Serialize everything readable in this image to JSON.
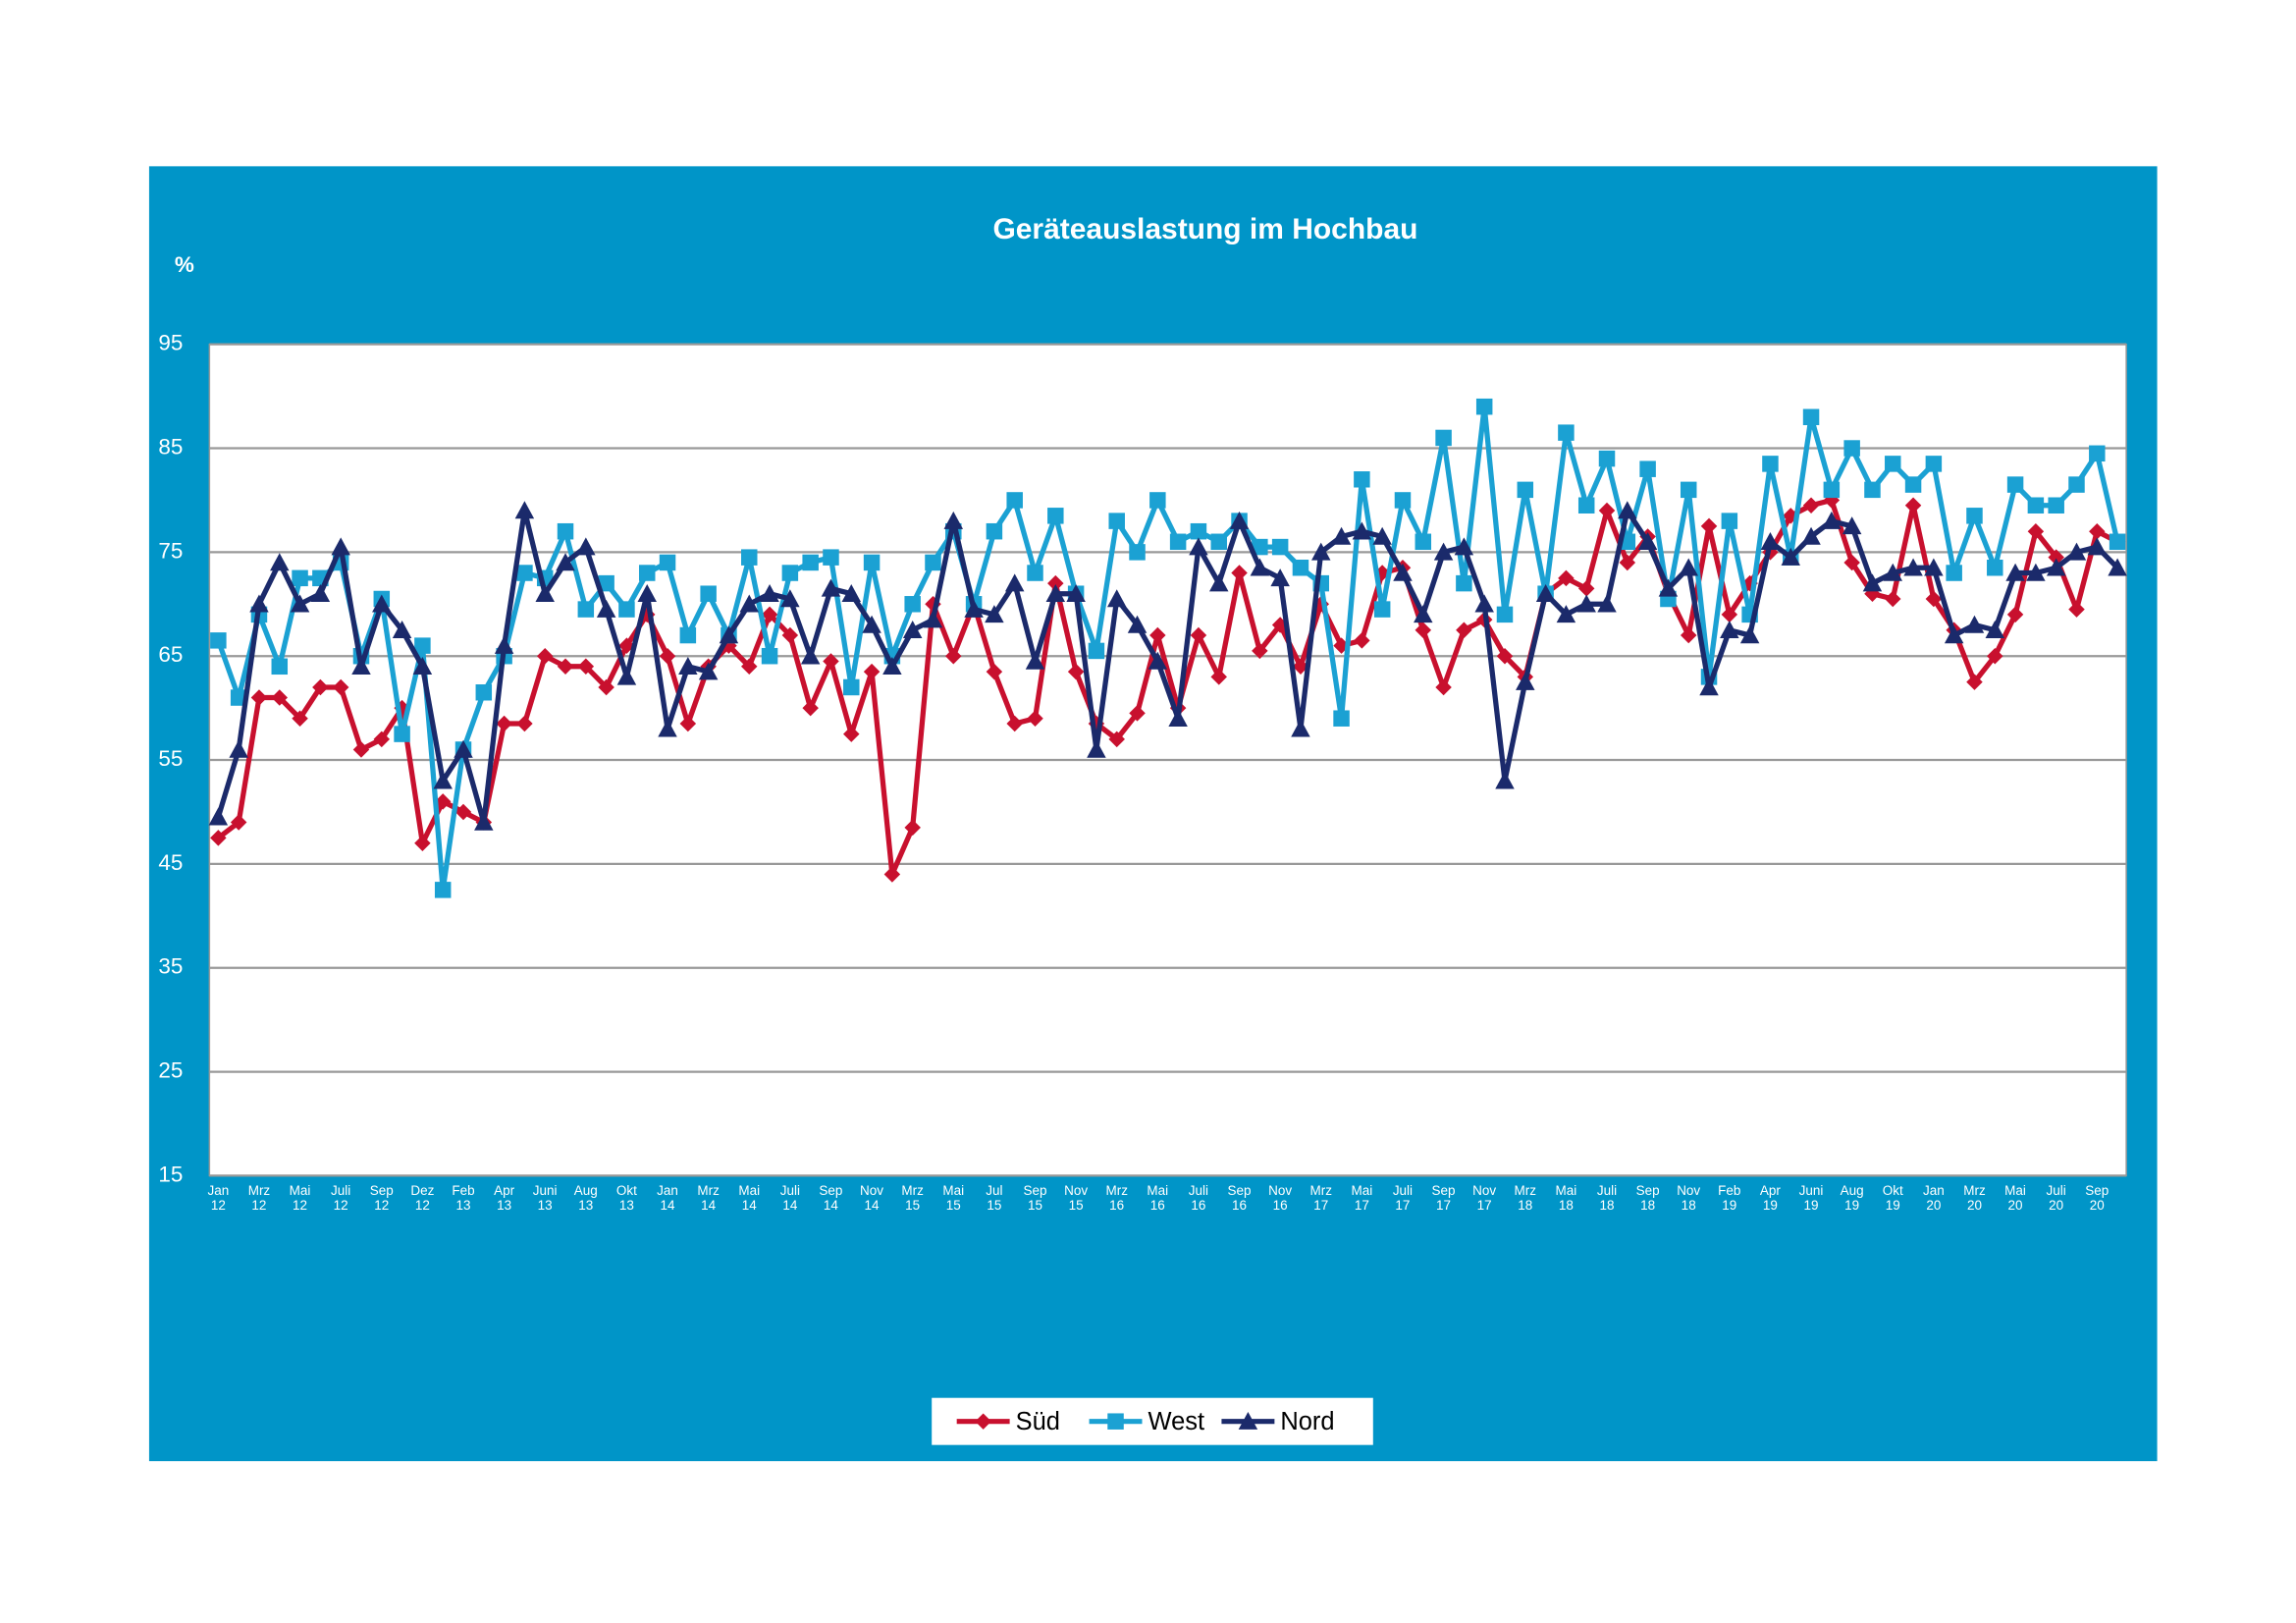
{
  "chart_data": {
    "type": "line",
    "title": "Geräteauslastung im Hochbau",
    "y_label": "%",
    "ylim": [
      15,
      95
    ],
    "yticks": [
      15,
      25,
      35,
      45,
      55,
      65,
      75,
      85,
      95
    ],
    "grid": true,
    "legend": "bottom",
    "categories": [
      "Jan 12",
      null,
      "Mrz 12",
      null,
      "Mai 12",
      null,
      "Juli 12",
      null,
      "Sep 12",
      null,
      "Dez 12",
      null,
      "Feb 13",
      null,
      "Apr 13",
      null,
      "Juni 13",
      null,
      "Aug 13",
      null,
      "Okt 13",
      null,
      "Jan 14",
      null,
      "Mrz 14",
      null,
      "Mai 14",
      null,
      "Juli 14",
      null,
      "Sep 14",
      null,
      "Nov 14",
      null,
      "Mrz 15",
      null,
      "Mai 15",
      null,
      "Jul 15",
      null,
      "Sep 15",
      null,
      "Nov 15",
      null,
      "Mrz 16",
      null,
      "Mai 16",
      null,
      "Juli 16",
      null,
      "Sep 16",
      null,
      "Nov 16",
      null,
      "Mrz 17",
      null,
      "Mai 17",
      null,
      "Juli 17",
      null,
      "Sep 17",
      null,
      "Nov 17",
      null,
      "Mrz 18",
      null,
      "Mai 18",
      null,
      "Juli 18",
      null,
      "Sep 18",
      null,
      "Nov 18",
      null,
      "Feb 19",
      null,
      "Apr 19",
      null,
      "Juni 19",
      null,
      "Aug 19",
      null,
      "Okt 19",
      null,
      "Jan 20",
      null,
      "Mrz 20",
      null,
      "Mai 20",
      null,
      "Juli 20",
      null,
      "Sep 20",
      null
    ],
    "series": [
      {
        "name": "Süd",
        "color": "#c8102e",
        "marker": "diamond",
        "values": [
          47.5,
          49,
          61,
          61,
          59,
          62,
          62,
          56,
          57,
          60,
          47,
          51,
          50,
          49,
          58.5,
          58.5,
          65,
          64,
          64,
          62,
          66,
          69,
          65,
          58.5,
          64,
          66,
          64,
          69,
          67,
          60,
          64.5,
          57.5,
          63.5,
          44,
          48.5,
          70,
          65,
          70,
          63.5,
          58.5,
          59,
          72,
          63.5,
          58.5,
          57,
          59.5,
          67,
          60,
          67,
          63,
          73,
          65.5,
          68,
          64,
          70,
          66,
          66.5,
          73,
          73.5,
          67.5,
          62,
          67.5,
          68.5,
          65,
          63,
          71,
          72.5,
          71.5,
          79,
          74,
          76.5,
          71,
          67,
          77.5,
          69,
          72,
          75,
          78.5,
          79.5,
          80,
          74,
          71,
          70.5,
          79.5,
          70.5,
          67.5,
          62.5,
          65,
          69,
          77,
          74.5,
          69.5,
          77,
          76
        ]
      },
      {
        "name": "West",
        "color": "#1ba1d3",
        "marker": "square",
        "values": [
          66.5,
          61,
          69,
          64,
          72.5,
          72.5,
          74,
          65,
          70.5,
          57.5,
          66,
          42.5,
          56,
          61.5,
          65,
          73,
          72.5,
          77,
          69.5,
          72,
          69.5,
          73,
          74,
          67,
          71,
          67,
          74.5,
          65,
          73,
          74,
          74.5,
          62,
          74,
          65,
          70,
          74,
          77,
          70,
          77,
          80,
          73,
          78.5,
          71,
          65.5,
          78,
          75,
          80,
          76,
          77,
          76,
          78,
          75.5,
          75.5,
          73.5,
          72,
          59,
          82,
          69.5,
          80,
          76,
          86,
          72,
          89,
          69,
          81,
          71,
          86.5,
          79.5,
          84,
          76,
          83,
          70.5,
          81,
          63,
          78,
          69,
          83.5,
          74.5,
          88,
          81,
          85,
          81,
          83.5,
          81.5,
          83.5,
          73,
          78.5,
          73.5,
          81.5,
          79.5,
          79.5,
          81.5,
          84.5,
          76
        ]
      },
      {
        "name": "Nord",
        "color": "#1b2a6b",
        "marker": "triangle",
        "values": [
          49.5,
          56,
          70,
          74,
          70,
          71,
          75.5,
          64,
          70,
          67.5,
          64,
          53,
          56,
          49,
          66,
          79,
          71,
          74,
          75.5,
          69.5,
          63,
          71,
          58,
          64,
          63.5,
          67,
          70,
          71,
          70.5,
          65,
          71.5,
          71,
          68,
          64,
          67.5,
          68.5,
          78,
          69.5,
          69,
          72,
          64.5,
          71,
          71,
          56,
          70.5,
          68,
          64.5,
          59,
          75.5,
          72,
          78,
          73.5,
          72.5,
          58,
          75,
          76.5,
          77,
          76.5,
          73,
          69,
          75,
          75.5,
          70,
          53,
          62.5,
          71,
          69,
          70,
          70,
          79,
          76,
          71.5,
          73.5,
          62,
          67.5,
          67,
          76,
          74.5,
          76.5,
          78,
          77.5,
          72,
          73,
          73.5,
          73.5,
          67,
          68,
          67.5,
          73,
          73,
          73.5,
          75,
          75.5,
          73.5
        ]
      }
    ]
  }
}
